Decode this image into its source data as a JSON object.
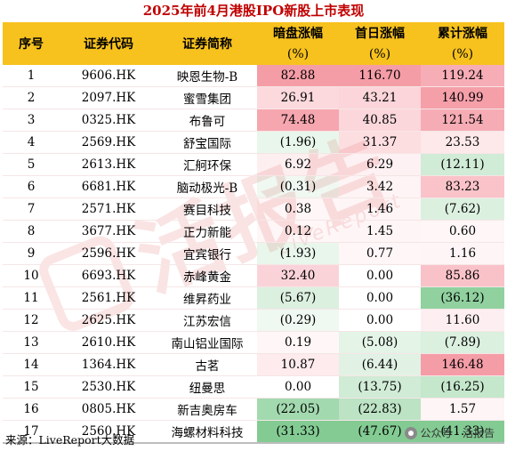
{
  "title": "2025年前4月港股IPO新股上市表现",
  "columns": {
    "idx": "序号",
    "code": "证券代码",
    "name": "证券简称",
    "dark": "暗盘涨幅",
    "first": "首日涨幅",
    "cum": "累计涨幅",
    "unit": "(%)"
  },
  "rows": [
    {
      "idx": "1",
      "code": "9606.HK",
      "name": "映恩生物-B",
      "dark": "82.88",
      "first": "116.70",
      "cum": "119.24"
    },
    {
      "idx": "2",
      "code": "2097.HK",
      "name": "蜜雪集团",
      "dark": "26.91",
      "first": "43.21",
      "cum": "140.99"
    },
    {
      "idx": "3",
      "code": "0325.HK",
      "name": "布鲁可",
      "dark": "74.48",
      "first": "40.85",
      "cum": "121.54"
    },
    {
      "idx": "4",
      "code": "2569.HK",
      "name": "舒宝国际",
      "dark": "(1.96)",
      "first": "31.37",
      "cum": "23.53"
    },
    {
      "idx": "5",
      "code": "2613.HK",
      "name": "汇舸环保",
      "dark": "6.92",
      "first": "6.29",
      "cum": "(12.11)"
    },
    {
      "idx": "6",
      "code": "6681.HK",
      "name": "脑动极光-B",
      "dark": "(0.31)",
      "first": "3.42",
      "cum": "83.23"
    },
    {
      "idx": "7",
      "code": "2571.HK",
      "name": "赛目科技",
      "dark": "0.38",
      "first": "1.46",
      "cum": "(7.62)"
    },
    {
      "idx": "8",
      "code": "3677.HK",
      "name": "正力新能",
      "dark": "0.12",
      "first": "1.45",
      "cum": "0.60"
    },
    {
      "idx": "9",
      "code": "2596.HK",
      "name": "宜宾银行",
      "dark": "(1.93)",
      "first": "0.77",
      "cum": "1.16"
    },
    {
      "idx": "10",
      "code": "6693.HK",
      "name": "赤峰黄金",
      "dark": "32.40",
      "first": "0.00",
      "cum": "85.86"
    },
    {
      "idx": "11",
      "code": "2561.HK",
      "name": "维昇药业",
      "dark": "(5.67)",
      "first": "0.00",
      "cum": "(36.12)"
    },
    {
      "idx": "12",
      "code": "2625.HK",
      "name": "江苏宏信",
      "dark": "(0.29)",
      "first": "0.00",
      "cum": "11.60"
    },
    {
      "idx": "13",
      "code": "2610.HK",
      "name": "南山铝业国际",
      "dark": "0.19",
      "first": "(5.08)",
      "cum": "(7.89)"
    },
    {
      "idx": "14",
      "code": "1364.HK",
      "name": "古茗",
      "dark": "10.87",
      "first": "(6.44)",
      "cum": "146.48"
    },
    {
      "idx": "15",
      "code": "2530.HK",
      "name": "纽曼思",
      "dark": "0.00",
      "first": "(13.75)",
      "cum": "(16.25)"
    },
    {
      "idx": "16",
      "code": "0805.HK",
      "name": "新吉奥房车",
      "dark": "(22.05)",
      "first": "(22.83)",
      "cum": "1.57"
    },
    {
      "idx": "17",
      "code": "2560.HK",
      "name": "海螺材料科技",
      "dark": "(31.33)",
      "first": "(47.67)",
      "cum": "(41.33)"
    }
  ],
  "watermark": {
    "brand": "活报告",
    "sub": "LiveReport"
  },
  "footer": "来源：LiveReport大数据",
  "credit": "公众号 · 活报告",
  "colors": {
    "header_bg": "#f7c21e",
    "title": "#c00000",
    "negative_text": "#c00000",
    "pos_scale": "#f4a0a8",
    "neg_scale": "#7cc68c"
  }
}
